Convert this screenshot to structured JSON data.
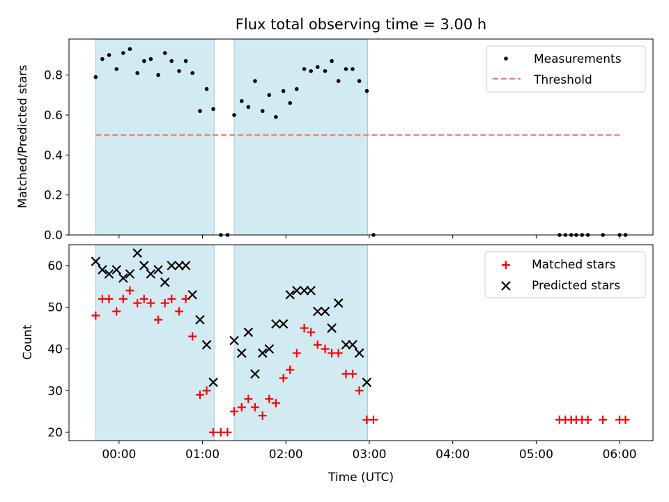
{
  "chart_data": {
    "type": "scatter",
    "title": "Flux total observing time = 3.00 h",
    "xlabel": "Time (UTC)",
    "x_unit": "hours since 00:00 UTC",
    "xlim": [
      -0.6,
      6.4
    ],
    "xticks": [
      {
        "value": 0,
        "label": "00:00"
      },
      {
        "value": 1,
        "label": "01:00"
      },
      {
        "value": 2,
        "label": "02:00"
      },
      {
        "value": 3,
        "label": "03:00"
      },
      {
        "value": 4,
        "label": "04:00"
      },
      {
        "value": 5,
        "label": "05:00"
      },
      {
        "value": 6,
        "label": "06:00"
      }
    ],
    "shaded_intervals": [
      [
        -0.28,
        1.14
      ],
      [
        1.38,
        2.98
      ]
    ],
    "colors": {
      "shade": "#add8e6",
      "threshold": "#ff7070",
      "matched": "#ff0000",
      "predicted": "#000000",
      "measurement": "#000000"
    },
    "top": {
      "ylabel": "Matched/Predicted stars",
      "ylim": [
        0,
        0.98
      ],
      "yticks": [
        {
          "value": 0,
          "label": "0.0"
        },
        {
          "value": 0.2,
          "label": "0.2"
        },
        {
          "value": 0.4,
          "label": "0.4"
        },
        {
          "value": 0.6,
          "label": "0.6"
        },
        {
          "value": 0.8,
          "label": "0.8"
        }
      ],
      "threshold": {
        "value": 0.5,
        "x_range": [
          -0.28,
          6.03
        ]
      },
      "legend": [
        "Measurements",
        "Threshold"
      ],
      "measurements": {
        "x": [
          -0.28,
          -0.2,
          -0.12,
          -0.03,
          0.05,
          0.13,
          0.22,
          0.3,
          0.38,
          0.47,
          0.55,
          0.63,
          0.72,
          0.8,
          0.88,
          0.97,
          1.05,
          1.13,
          1.22,
          1.3,
          1.38,
          1.47,
          1.55,
          1.63,
          1.72,
          1.8,
          1.88,
          1.97,
          2.05,
          2.13,
          2.22,
          2.3,
          2.38,
          2.47,
          2.55,
          2.63,
          2.72,
          2.8,
          2.88,
          2.97,
          3.05,
          5.28,
          5.35,
          5.42,
          5.48,
          5.55,
          5.62,
          5.8,
          6.0,
          6.07
        ],
        "y": [
          0.79,
          0.88,
          0.9,
          0.83,
          0.91,
          0.93,
          0.81,
          0.87,
          0.88,
          0.8,
          0.91,
          0.87,
          0.82,
          0.87,
          0.81,
          0.62,
          0.73,
          0.63,
          0.0,
          0.0,
          0.6,
          0.67,
          0.64,
          0.77,
          0.62,
          0.7,
          0.59,
          0.72,
          0.66,
          0.73,
          0.83,
          0.82,
          0.84,
          0.82,
          0.87,
          0.77,
          0.83,
          0.83,
          0.77,
          0.72,
          0.0,
          0.0,
          0.0,
          0.0,
          0.0,
          0.0,
          0.0,
          0.0,
          0.0,
          0.0
        ]
      }
    },
    "bottom": {
      "ylabel": "Count",
      "ylim": [
        18,
        65
      ],
      "yticks": [
        {
          "value": 20,
          "label": "20"
        },
        {
          "value": 30,
          "label": "30"
        },
        {
          "value": 40,
          "label": "40"
        },
        {
          "value": 50,
          "label": "50"
        },
        {
          "value": 60,
          "label": "60"
        }
      ],
      "legend": [
        "Matched stars",
        "Predicted stars"
      ],
      "series": [
        {
          "name": "Matched stars",
          "marker": "plus",
          "x": [
            -0.28,
            -0.2,
            -0.12,
            -0.03,
            0.05,
            0.13,
            0.22,
            0.3,
            0.38,
            0.47,
            0.55,
            0.63,
            0.72,
            0.8,
            0.88,
            0.97,
            1.05,
            1.13,
            1.22,
            1.3,
            1.38,
            1.47,
            1.55,
            1.63,
            1.72,
            1.8,
            1.88,
            1.97,
            2.05,
            2.13,
            2.22,
            2.3,
            2.38,
            2.47,
            2.55,
            2.63,
            2.72,
            2.8,
            2.88,
            2.97,
            3.05,
            5.28,
            5.35,
            5.42,
            5.48,
            5.55,
            5.62,
            5.8,
            6.0,
            6.07
          ],
          "y": [
            48,
            52,
            52,
            49,
            52,
            54,
            51,
            52,
            51,
            47,
            51,
            52,
            49,
            52,
            43,
            29,
            30,
            20,
            20,
            20,
            25,
            26,
            28,
            26,
            24,
            28,
            27,
            33,
            35,
            39,
            45,
            44,
            41,
            40,
            39,
            39,
            34,
            34,
            30,
            23,
            23,
            23,
            23,
            23,
            23,
            23,
            23,
            23,
            23,
            23
          ]
        },
        {
          "name": "Predicted stars",
          "marker": "x",
          "x": [
            -0.28,
            -0.2,
            -0.12,
            -0.03,
            0.05,
            0.13,
            0.22,
            0.3,
            0.38,
            0.47,
            0.55,
            0.63,
            0.72,
            0.8,
            0.88,
            0.97,
            1.05,
            1.13,
            1.38,
            1.47,
            1.55,
            1.63,
            1.72,
            1.8,
            1.88,
            1.97,
            2.05,
            2.13,
            2.22,
            2.3,
            2.38,
            2.47,
            2.55,
            2.63,
            2.72,
            2.8,
            2.88,
            2.97
          ],
          "y": [
            61,
            59,
            58,
            59,
            57,
            58,
            63,
            60,
            58,
            59,
            56,
            60,
            60,
            60,
            53,
            47,
            41,
            32,
            42,
            39,
            44,
            34,
            39,
            40,
            46,
            46,
            53,
            54,
            54,
            54,
            49,
            49,
            45,
            51,
            41,
            41,
            39,
            32
          ]
        }
      ]
    }
  }
}
